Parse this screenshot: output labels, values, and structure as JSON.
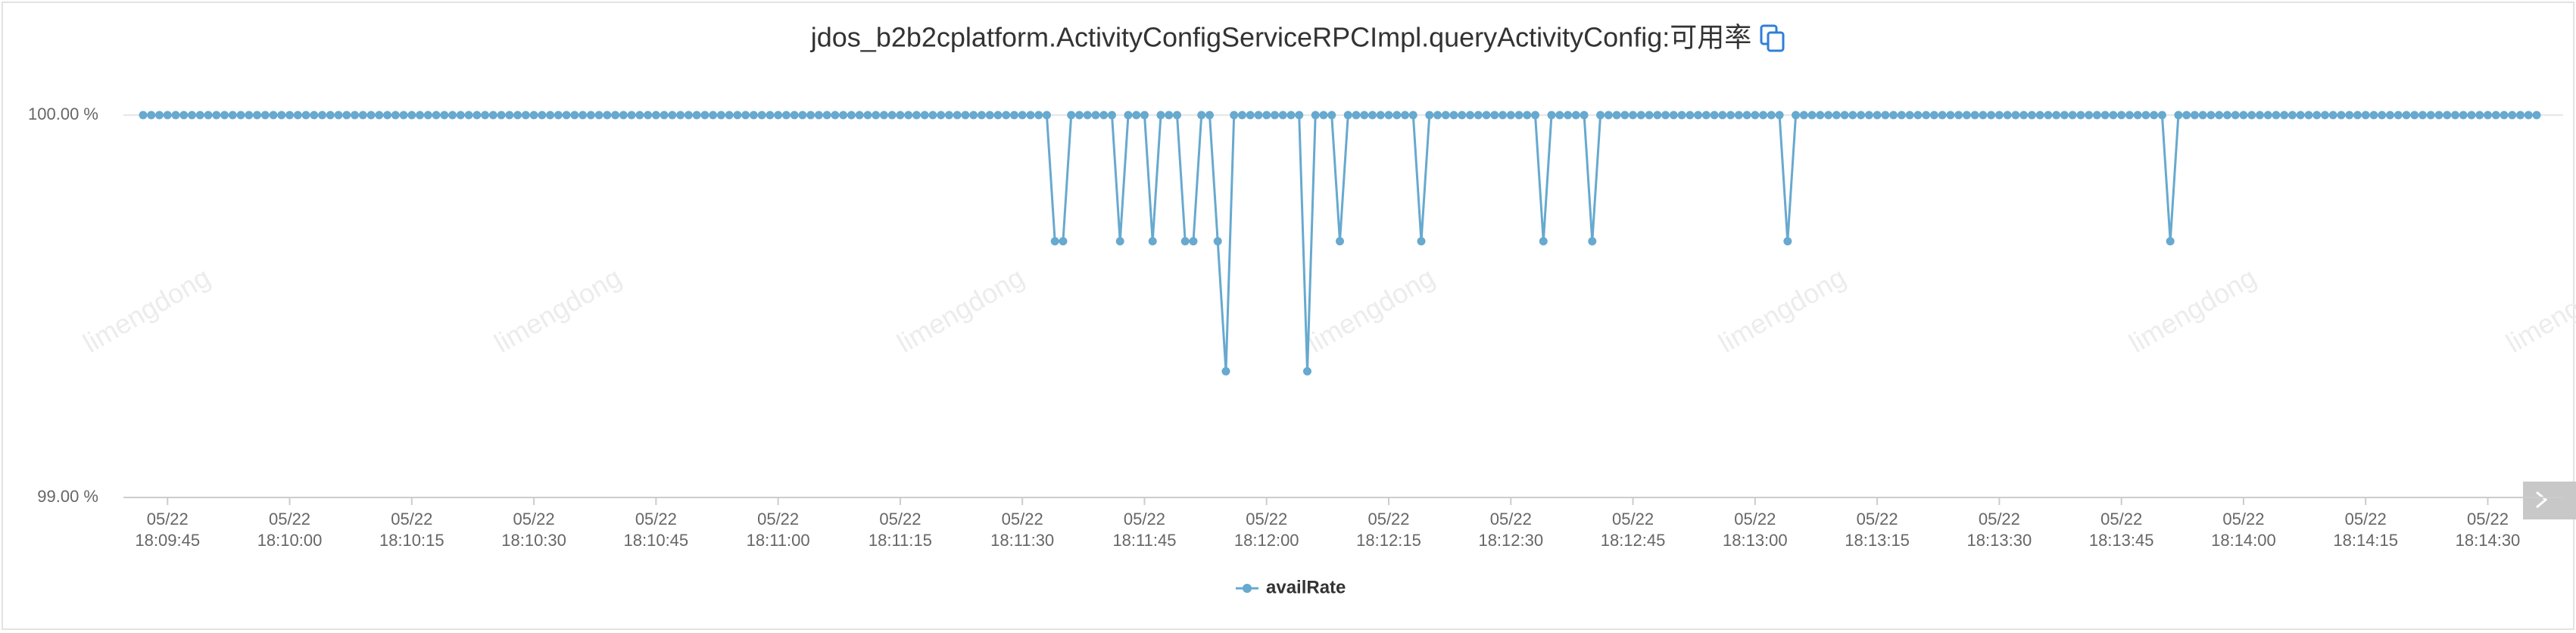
{
  "chart_data": {
    "type": "line",
    "title": "jdos_b2b2cplatform.ActivityConfigServiceRPCImpl.queryActivityConfig:可用率",
    "watermark": "limengdong",
    "categories": [
      null,
      null,
      null,
      "05/22 18:09:45",
      null,
      null,
      null,
      null,
      null,
      null,
      null,
      null,
      null,
      null,
      null,
      null,
      null,
      null,
      "05/22 18:10:00",
      null,
      null,
      null,
      null,
      null,
      null,
      null,
      null,
      null,
      null,
      null,
      null,
      null,
      null,
      "05/22 18:10:15",
      null,
      null,
      null,
      null,
      null,
      null,
      null,
      null,
      null,
      null,
      null,
      null,
      null,
      null,
      "05/22 18:10:30",
      null,
      null,
      null,
      null,
      null,
      null,
      null,
      null,
      null,
      null,
      null,
      null,
      null,
      null,
      "05/22 18:10:45",
      null,
      null,
      null,
      null,
      null,
      null,
      null,
      null,
      null,
      null,
      null,
      null,
      null,
      null,
      "05/22 18:11:00",
      null,
      null,
      null,
      null,
      null,
      null,
      null,
      null,
      null,
      null,
      null,
      null,
      null,
      null,
      "05/22 18:11:15",
      null,
      null,
      null,
      null,
      null,
      null,
      null,
      null,
      null,
      null,
      null,
      null,
      null,
      null,
      "05/22 18:11:30",
      null,
      null,
      null,
      null,
      null,
      null,
      null,
      null,
      null,
      null,
      null,
      null,
      null,
      null,
      "05/22 18:11:45",
      null,
      null,
      null,
      null,
      null,
      null,
      null,
      null,
      null,
      null,
      null,
      null,
      null,
      null,
      "05/22 18:12:00",
      null,
      null,
      null,
      null,
      null,
      null,
      null,
      null,
      null,
      null,
      null,
      null,
      null,
      null,
      "05/22 18:12:15",
      null,
      null,
      null,
      null,
      null,
      null,
      null,
      null,
      null,
      null,
      null,
      null,
      null,
      null,
      "05/22 18:12:30",
      null,
      null,
      null,
      null,
      null,
      null,
      null,
      null,
      null,
      null,
      null,
      null,
      null,
      null,
      "05/22 18:12:45",
      null,
      null,
      null,
      null,
      null,
      null,
      null,
      null,
      null,
      null,
      null,
      null,
      null,
      null,
      "05/22 18:13:00",
      null,
      null,
      null,
      null,
      null,
      null,
      null,
      null,
      null,
      null,
      null,
      null,
      null,
      null,
      "05/22 18:13:15",
      null,
      null,
      null,
      null,
      null,
      null,
      null,
      null,
      null,
      null,
      null,
      null,
      null,
      null,
      "05/22 18:13:30",
      null,
      null,
      null,
      null,
      null,
      null,
      null,
      null,
      null,
      null,
      null,
      null,
      null,
      null,
      "05/22 18:13:45",
      null,
      null,
      null,
      null,
      null,
      null,
      null,
      null,
      null,
      null,
      null,
      null,
      null,
      null,
      "05/22 18:14:00",
      null,
      null,
      null,
      null,
      null,
      null,
      null,
      null,
      null,
      null,
      null,
      null,
      null,
      null,
      "05/22 18:14:15",
      null,
      null,
      null,
      null,
      null,
      null,
      null,
      null,
      null,
      null,
      null,
      null,
      null,
      null,
      "05/22 18:14:30",
      null,
      null,
      null,
      null,
      null,
      null
    ],
    "series": [
      {
        "name": "availRate",
        "color": "#67a9cf",
        "values": [
          100,
          100,
          100,
          100,
          100,
          100,
          100,
          100,
          100,
          100,
          100,
          100,
          100,
          100,
          100,
          100,
          100,
          100,
          100,
          100,
          100,
          100,
          100,
          100,
          100,
          100,
          100,
          100,
          100,
          100,
          100,
          100,
          100,
          100,
          100,
          100,
          100,
          100,
          100,
          100,
          100,
          100,
          100,
          100,
          100,
          100,
          100,
          100,
          100,
          100,
          100,
          100,
          100,
          100,
          100,
          100,
          100,
          100,
          100,
          100,
          100,
          100,
          100,
          100,
          100,
          100,
          100,
          100,
          100,
          100,
          100,
          100,
          100,
          100,
          100,
          100,
          100,
          100,
          100,
          100,
          100,
          100,
          100,
          100,
          100,
          100,
          100,
          100,
          100,
          100,
          100,
          100,
          100,
          100,
          100,
          100,
          100,
          100,
          100,
          100,
          100,
          100,
          100,
          100,
          100,
          100,
          100,
          100,
          100,
          100,
          100,
          100,
          99.67,
          99.67,
          100,
          100,
          100,
          100,
          100,
          100,
          99.67,
          100,
          100,
          100,
          99.67,
          100,
          100,
          100,
          99.67,
          99.67,
          100,
          100,
          99.67,
          99.33,
          100,
          100,
          100,
          100,
          100,
          100,
          100,
          100,
          100,
          99.33,
          100,
          100,
          100,
          99.67,
          100,
          100,
          100,
          100,
          100,
          100,
          100,
          100,
          100,
          99.67,
          100,
          100,
          100,
          100,
          100,
          100,
          100,
          100,
          100,
          100,
          100,
          100,
          100,
          100,
          99.67,
          100,
          100,
          100,
          100,
          100,
          99.67,
          100,
          100,
          100,
          100,
          100,
          100,
          100,
          100,
          100,
          100,
          100,
          100,
          100,
          100,
          100,
          100,
          100,
          100,
          100,
          100,
          100,
          100,
          100,
          99.67,
          100,
          100,
          100,
          100,
          100,
          100,
          100,
          100,
          100,
          100,
          100,
          100,
          100,
          100,
          100,
          100,
          100,
          100,
          100,
          100,
          100,
          100,
          100,
          100,
          100,
          100,
          100,
          100,
          100,
          100,
          100,
          100,
          100,
          100,
          100,
          100,
          100,
          100,
          100,
          100,
          100,
          100,
          100,
          100,
          100,
          100,
          99.67,
          100,
          100,
          100,
          100,
          100,
          100,
          100,
          100,
          100,
          100,
          100,
          100,
          100,
          100,
          100,
          100,
          100,
          100,
          100,
          100,
          100,
          100,
          100,
          100,
          100,
          100,
          100,
          100,
          100,
          100,
          100,
          100,
          100,
          100,
          100,
          100,
          100,
          100,
          100,
          100,
          100,
          100,
          100,
          100,
          100
        ]
      }
    ],
    "ylim": [
      99,
      100
    ],
    "yticks": [
      {
        "value": 99,
        "label": "99.00 %"
      },
      {
        "value": 100,
        "label": "100.00 %"
      }
    ],
    "grid": true
  }
}
